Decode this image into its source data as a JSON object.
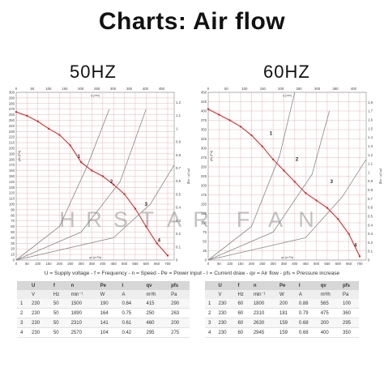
{
  "title": "Charts: Air flow",
  "watermark": [
    "H",
    "R",
    "S",
    "T",
    "A",
    "R",
    "F",
    "A",
    "N"
  ],
  "legend": "U = Supply voltage - f = Frequency - n = Speed - Pe = Power input - I = Current draw - qv = Air flow - pfs = Pressure increase",
  "colors": {
    "curve": "#d22e2e",
    "grid": "#e6b8b8",
    "helper": "#888888"
  },
  "chart_data": [
    {
      "type": "line",
      "title": "50HZ",
      "xlabel": "qv [m³/h]",
      "ylabel": "pfs [Pa]",
      "xlim": [
        0,
        730
      ],
      "ylim": [
        0,
        300
      ],
      "x_ticks": [
        0,
        50,
        100,
        150,
        200,
        250,
        300,
        350,
        400,
        450,
        500,
        550,
        600,
        650,
        700
      ],
      "y_ticks": [
        0,
        10,
        20,
        30,
        40,
        50,
        60,
        70,
        80,
        90,
        100,
        110,
        120,
        130,
        140,
        150,
        160,
        170,
        180,
        190,
        200,
        210,
        220,
        230,
        240,
        250,
        260,
        270,
        280,
        290,
        300
      ],
      "top_axis": {
        "label": "q [cfm]",
        "ticks": [
          "0",
          "50",
          "100",
          "150",
          "200",
          "250",
          "300",
          "350",
          "400",
          "450"
        ]
      },
      "right_axis": {
        "label": "pfs [in. wg]",
        "ticks": [
          "0",
          "0.1",
          "0.2",
          "0.3",
          "0.4",
          "0.5",
          "0.6",
          "0.7",
          "0.8",
          "0.9",
          "1",
          "1.1",
          "1.2"
        ]
      },
      "series": [
        {
          "x": [
            0,
            50,
            100,
            150,
            200,
            250,
            300,
            350,
            400,
            450,
            500,
            550,
            600,
            650,
            700
          ],
          "y": [
            265,
            258,
            248,
            235,
            224,
            205,
            175,
            160,
            150,
            135,
            118,
            92,
            60,
            30,
            8
          ]
        }
      ],
      "helper_lines": [
        {
          "x": [
            0,
            200,
            330,
            430
          ],
          "y": [
            0,
            60,
            170,
            270
          ]
        },
        {
          "x": [
            0,
            300,
            480,
            600
          ],
          "y": [
            0,
            50,
            140,
            270
          ]
        },
        {
          "x": [
            0,
            450,
            620,
            730
          ],
          "y": [
            0,
            40,
            100,
            170
          ]
        }
      ],
      "markers": [
        {
          "label": "1",
          "x": 290,
          "y": 185
        },
        {
          "label": "2",
          "x": 440,
          "y": 140
        },
        {
          "label": "3",
          "x": 600,
          "y": 100
        },
        {
          "label": "4",
          "x": 660,
          "y": 35
        }
      ]
    },
    {
      "type": "line",
      "title": "60HZ",
      "xlabel": "qv [m³/h]",
      "ylabel": "pfs [Pa]",
      "xlim": [
        0,
        730
      ],
      "ylim": [
        0,
        450
      ],
      "x_ticks": [
        0,
        50,
        100,
        150,
        200,
        250,
        300,
        350,
        400,
        450,
        500,
        550,
        600,
        650,
        700
      ],
      "y_ticks": [
        0,
        25,
        50,
        75,
        100,
        125,
        150,
        175,
        200,
        225,
        250,
        275,
        300,
        325,
        350,
        375,
        400,
        425,
        450
      ],
      "top_axis": {
        "label": "q [cfm]",
        "ticks": [
          "0",
          "50",
          "100",
          "150",
          "200",
          "250",
          "300",
          "350",
          "400"
        ]
      },
      "right_axis": {
        "label": "pfs [in. wg]",
        "ticks": [
          "0",
          "0.1",
          "0.2",
          "0.3",
          "0.4",
          "0.5",
          "0.6",
          "0.7",
          "0.8",
          "0.9",
          "1",
          "1.1",
          "1.2",
          "1.3",
          "1.4",
          "1.5",
          "1.6",
          "1.7",
          "1.8"
        ]
      },
      "series": [
        {
          "x": [
            0,
            50,
            100,
            150,
            200,
            250,
            300,
            350,
            400,
            450,
            500,
            550,
            600,
            650,
            700
          ],
          "y": [
            405,
            390,
            375,
            358,
            335,
            305,
            270,
            240,
            210,
            180,
            160,
            140,
            110,
            70,
            10
          ]
        }
      ],
      "helper_lines": [
        {
          "x": [
            0,
            200,
            330,
            400
          ],
          "y": [
            0,
            90,
            280,
            450
          ]
        },
        {
          "x": [
            0,
            300,
            480,
            560
          ],
          "y": [
            0,
            75,
            230,
            400
          ]
        },
        {
          "x": [
            0,
            450,
            620,
            730
          ],
          "y": [
            0,
            60,
            170,
            270
          ]
        }
      ],
      "markers": [
        {
          "label": "1",
          "x": 290,
          "y": 340
        },
        {
          "label": "2",
          "x": 410,
          "y": 270
        },
        {
          "label": "3",
          "x": 570,
          "y": 210
        },
        {
          "label": "4",
          "x": 680,
          "y": 40
        }
      ]
    }
  ],
  "tables": [
    {
      "header": [
        "U",
        "f",
        "n",
        "Pe",
        "I",
        "qv",
        "pfs"
      ],
      "units": [
        "V",
        "Hz",
        "min⁻¹",
        "W",
        "A",
        "m³/h",
        "Pa"
      ],
      "rows": [
        [
          "1",
          "230",
          "50",
          "1500",
          "190",
          "0.84",
          "415",
          "290"
        ],
        [
          "2",
          "230",
          "50",
          "1890",
          "164",
          "0.75",
          "250",
          "263"
        ],
        [
          "3",
          "230",
          "50",
          "2310",
          "141",
          "0.61",
          "460",
          "200"
        ],
        [
          "4",
          "230",
          "50",
          "2570",
          "104",
          "0.42",
          "295",
          "275"
        ]
      ]
    },
    {
      "header": [
        "U",
        "f",
        "n",
        "Pe",
        "I",
        "qv",
        "pfs"
      ],
      "units": [
        "V",
        "Hz",
        "min⁻¹",
        "W",
        "A",
        "m³/h",
        "Pa"
      ],
      "rows": [
        [
          "1",
          "230",
          "60",
          "1800",
          "200",
          "0.88",
          "565",
          "100"
        ],
        [
          "2",
          "230",
          "60",
          "2310",
          "181",
          "0.79",
          "475",
          "360"
        ],
        [
          "3",
          "230",
          "60",
          "2630",
          "159",
          "0.68",
          "200",
          "295"
        ],
        [
          "4",
          "230",
          "60",
          "2945",
          "159",
          "0.68",
          "400",
          "350"
        ]
      ]
    }
  ]
}
